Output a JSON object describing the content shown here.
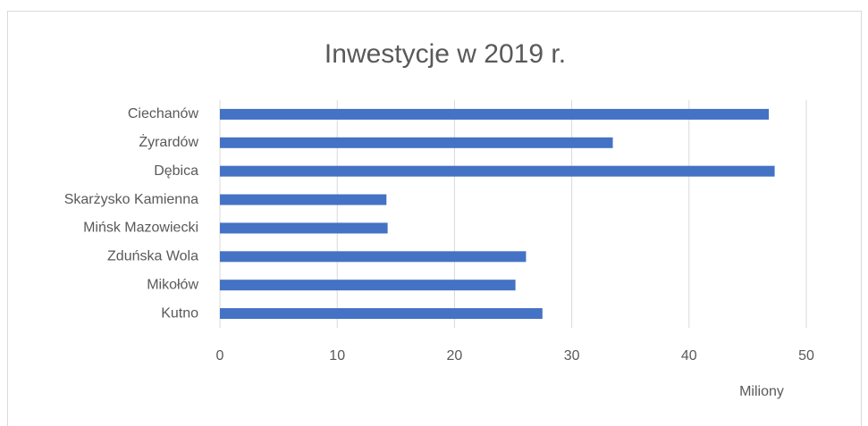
{
  "chart_data": {
    "type": "hbar",
    "title": "Inwestycje w 2019 r.",
    "x_label": "Miliony",
    "categories": [
      "Ciechanów",
      "Żyrardów",
      "Dębica",
      "Skarżysko Kamienna",
      "Mińsk Mazowiecki",
      "Zduńska Wola",
      "Mikołów",
      "Kutno"
    ],
    "values": [
      46.8,
      33.5,
      47.3,
      14.2,
      14.3,
      26.1,
      25.2,
      27.5
    ],
    "color": "#4472c4",
    "xlim": [
      0,
      50
    ],
    "xticks": [
      0,
      10,
      20,
      30,
      40,
      50
    ],
    "grid": true
  }
}
